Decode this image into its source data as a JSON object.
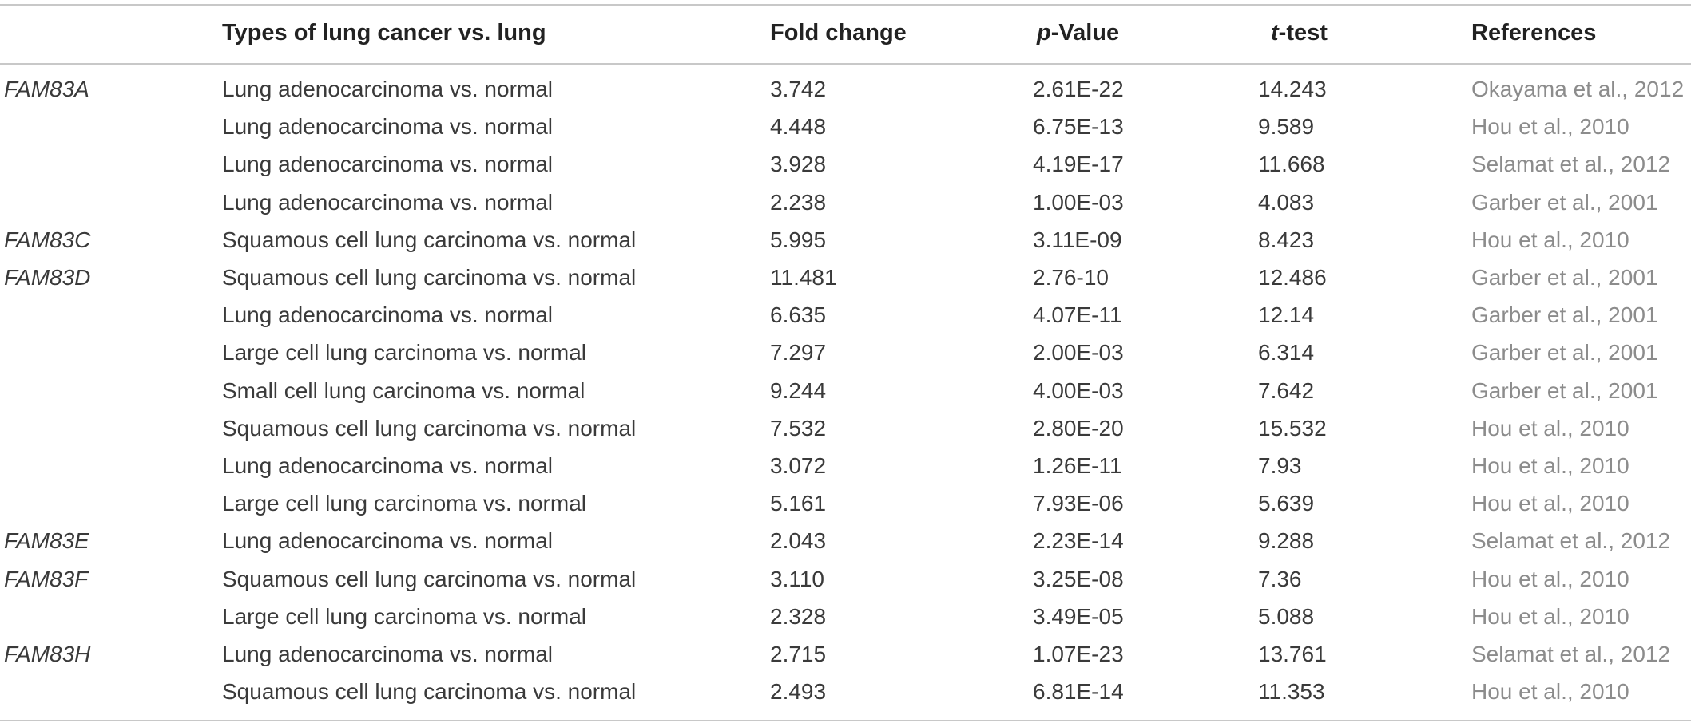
{
  "table": {
    "headers": {
      "gene": "",
      "type": "Types of lung cancer vs. lung",
      "fold_change": "Fold change",
      "p_value_prefix": "p",
      "p_value_suffix": "-Value",
      "t_test_prefix": "t",
      "t_test_suffix": "-test",
      "references": "References"
    },
    "rows": [
      {
        "gene": "FAM83A",
        "type": "Lung adenocarcinoma vs. normal",
        "fold_change": "3.742",
        "p_value": "2.61E-22",
        "t_test": "14.243",
        "reference": "Okayama et al., 2012"
      },
      {
        "gene": "",
        "type": "Lung adenocarcinoma vs. normal",
        "fold_change": "4.448",
        "p_value": "6.75E-13",
        "t_test": "9.589",
        "reference": "Hou et al., 2010"
      },
      {
        "gene": "",
        "type": "Lung adenocarcinoma vs. normal",
        "fold_change": "3.928",
        "p_value": "4.19E-17",
        "t_test": "11.668",
        "reference": "Selamat et al., 2012"
      },
      {
        "gene": "",
        "type": "Lung adenocarcinoma vs. normal",
        "fold_change": "2.238",
        "p_value": "1.00E-03",
        "t_test": "4.083",
        "reference": "Garber et al., 2001"
      },
      {
        "gene": "FAM83C",
        "type": "Squamous cell lung carcinoma vs. normal",
        "fold_change": "5.995",
        "p_value": "3.11E-09",
        "t_test": "8.423",
        "reference": "Hou et al., 2010"
      },
      {
        "gene": "FAM83D",
        "type": "Squamous cell lung carcinoma vs. normal",
        "fold_change": "11.481",
        "p_value": "2.76-10",
        "t_test": "12.486",
        "reference": "Garber et al., 2001"
      },
      {
        "gene": "",
        "type": "Lung adenocarcinoma vs. normal",
        "fold_change": "6.635",
        "p_value": "4.07E-11",
        "t_test": "12.14",
        "reference": "Garber et al., 2001"
      },
      {
        "gene": "",
        "type": "Large cell lung carcinoma vs. normal",
        "fold_change": "7.297",
        "p_value": "2.00E-03",
        "t_test": "6.314",
        "reference": "Garber et al., 2001"
      },
      {
        "gene": "",
        "type": "Small cell lung carcinoma vs. normal",
        "fold_change": "9.244",
        "p_value": "4.00E-03",
        "t_test": "7.642",
        "reference": "Garber et al., 2001"
      },
      {
        "gene": "",
        "type": "Squamous cell lung carcinoma vs. normal",
        "fold_change": "7.532",
        "p_value": "2.80E-20",
        "t_test": "15.532",
        "reference": "Hou et al., 2010"
      },
      {
        "gene": "",
        "type": "Lung adenocarcinoma vs. normal",
        "fold_change": "3.072",
        "p_value": "1.26E-11",
        "t_test": "7.93",
        "reference": "Hou et al., 2010"
      },
      {
        "gene": "",
        "type": "Large cell lung carcinoma vs. normal",
        "fold_change": "5.161",
        "p_value": "7.93E-06",
        "t_test": "5.639",
        "reference": "Hou et al., 2010"
      },
      {
        "gene": "FAM83E",
        "type": "Lung adenocarcinoma vs. normal",
        "fold_change": "2.043",
        "p_value": "2.23E-14",
        "t_test": "9.288",
        "reference": "Selamat et al., 2012"
      },
      {
        "gene": "FAM83F",
        "type": "Squamous cell lung carcinoma vs. normal",
        "fold_change": "3.110",
        "p_value": "3.25E-08",
        "t_test": "7.36",
        "reference": "Hou et al., 2010"
      },
      {
        "gene": "",
        "type": "Large cell lung carcinoma vs. normal",
        "fold_change": "2.328",
        "p_value": "3.49E-05",
        "t_test": "5.088",
        "reference": "Hou et al., 2010"
      },
      {
        "gene": "FAM83H",
        "type": "Lung adenocarcinoma vs. normal",
        "fold_change": "2.715",
        "p_value": "1.07E-23",
        "t_test": "13.761",
        "reference": "Selamat et al., 2012"
      },
      {
        "gene": "",
        "type": "Squamous cell lung carcinoma vs. normal",
        "fold_change": "2.493",
        "p_value": "6.81E-14",
        "t_test": "11.353",
        "reference": "Hou et al., 2010"
      }
    ]
  }
}
